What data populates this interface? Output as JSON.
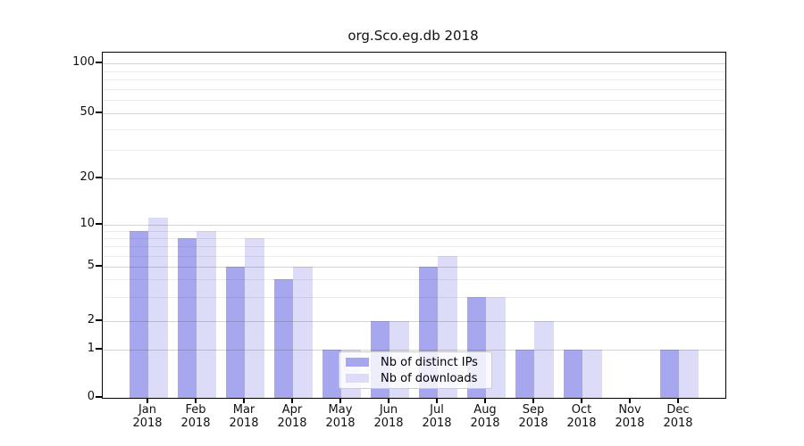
{
  "chart_data": {
    "type": "bar",
    "title": "org.Sco.eg.db 2018",
    "x": {
      "categories": [
        "Jan",
        "Feb",
        "Mar",
        "Apr",
        "May",
        "Jun",
        "Jul",
        "Aug",
        "Sep",
        "Oct",
        "Nov",
        "Dec"
      ],
      "sub_label": "2018"
    },
    "series": [
      {
        "name": "Nb of distinct IPs",
        "color": "#a7a7f0",
        "values": [
          9,
          8,
          5,
          4,
          1,
          2,
          5,
          3,
          1,
          1,
          0,
          1
        ]
      },
      {
        "name": "Nb of downloads",
        "color": "#dcdcf8",
        "values": [
          11,
          9,
          8,
          5,
          1,
          2,
          6,
          3,
          2,
          1,
          0,
          1
        ]
      }
    ],
    "y_axis": {
      "scale": "log-like (asinh), includes 0",
      "tick_labels": [
        "0",
        "1",
        "2",
        "5",
        "10",
        "20",
        "50",
        "100"
      ],
      "tick_values": [
        0,
        1,
        2,
        5,
        10,
        20,
        50,
        100
      ],
      "minor_gridline_values": [
        3,
        4,
        6,
        7,
        8,
        9,
        30,
        40,
        60,
        70,
        80,
        90
      ],
      "range": [
        0,
        100
      ],
      "grid": true
    },
    "legend": {
      "entries": [
        "Nb of distinct IPs",
        "Nb of downloads"
      ],
      "position": "inside plot, lower center-left"
    },
    "colors": {
      "distinct_ips": "#a7a7f0",
      "downloads": "#dcdcf8",
      "axis": "#000000",
      "grid_major": "#d6d6d6",
      "grid_minor": "#e9e9e9",
      "background": "#ffffff"
    }
  }
}
